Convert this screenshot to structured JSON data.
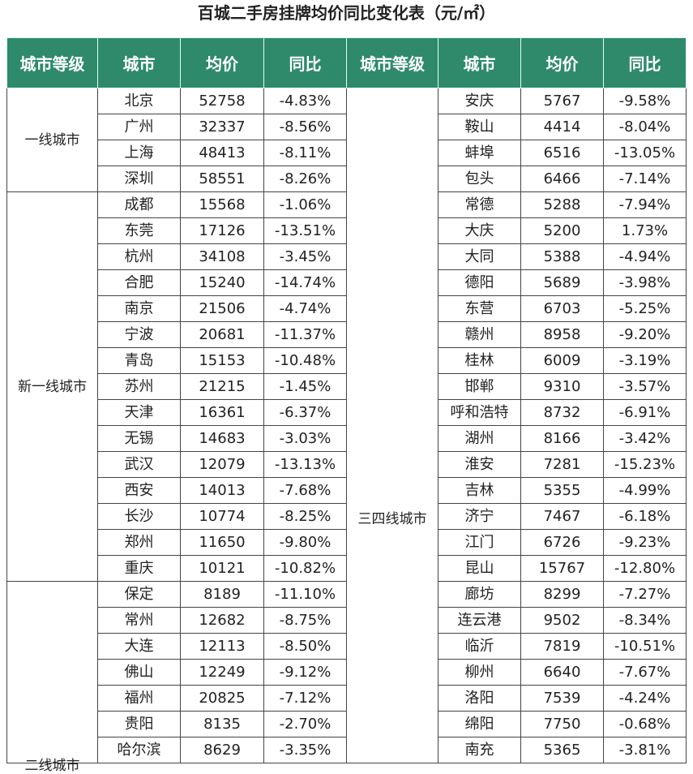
{
  "title": "百城二手房挂牌均价同比变化表（元/㎡）",
  "table": {
    "headers": [
      "城市等级",
      "城市",
      "均价",
      "同比",
      "城市等级",
      "城市",
      "均价",
      "同比"
    ],
    "left_groups": [
      {
        "tier": "一线城市",
        "rows": [
          [
            "北京",
            52758,
            "-4.83%"
          ],
          [
            "广州",
            32337,
            "-8.56%"
          ],
          [
            "上海",
            48413,
            "-8.11%"
          ],
          [
            "深圳",
            58551,
            "-8.26%"
          ]
        ]
      },
      {
        "tier": "新一线城市",
        "rows": [
          [
            "成都",
            15568,
            "-1.06%"
          ],
          [
            "东莞",
            17126,
            "-13.51%"
          ],
          [
            "杭州",
            34108,
            "-3.45%"
          ],
          [
            "合肥",
            15240,
            "-14.74%"
          ],
          [
            "南京",
            21506,
            "-4.74%"
          ],
          [
            "宁波",
            20681,
            "-11.37%"
          ],
          [
            "青岛",
            15153,
            "-10.48%"
          ],
          [
            "苏州",
            21215,
            "-1.45%"
          ],
          [
            "天津",
            16361,
            "-6.37%"
          ],
          [
            "无锡",
            14683,
            "-3.03%"
          ],
          [
            "武汉",
            12079,
            "-13.13%"
          ],
          [
            "西安",
            14013,
            "-7.68%"
          ],
          [
            "长沙",
            10774,
            "-8.25%"
          ],
          [
            "郑州",
            11650,
            "-9.80%"
          ],
          [
            "重庆",
            10121,
            "-10.82%"
          ]
        ]
      },
      {
        "tier": "二线城市",
        "rows": [
          [
            "保定",
            8189,
            "-11.10%"
          ],
          [
            "常州",
            12682,
            "-8.75%"
          ],
          [
            "大连",
            12113,
            "-8.50%"
          ],
          [
            "佛山",
            12249,
            "-9.12%"
          ],
          [
            "福州",
            20825,
            "-7.12%"
          ],
          [
            "贵阳",
            8135,
            "-2.70%"
          ],
          [
            "哈尔滨",
            8629,
            "-3.35%"
          ]
        ]
      }
    ],
    "right_groups": [
      {
        "tier": "三四线城市",
        "rows": [
          [
            "安庆",
            5767,
            "-9.58%"
          ],
          [
            "鞍山",
            4414,
            "-8.04%"
          ],
          [
            "蚌埠",
            6516,
            "-13.05%"
          ],
          [
            "包头",
            6466,
            "-7.14%"
          ],
          [
            "常德",
            5288,
            "-7.94%"
          ],
          [
            "大庆",
            5200,
            "1.73%"
          ],
          [
            "大同",
            5388,
            "-4.94%"
          ],
          [
            "德阳",
            5689,
            "-3.98%"
          ],
          [
            "东营",
            6703,
            "-5.25%"
          ],
          [
            "赣州",
            8958,
            "-9.20%"
          ],
          [
            "桂林",
            6009,
            "-3.19%"
          ],
          [
            "邯郸",
            9310,
            "-3.57%"
          ],
          [
            "呼和浩特",
            8732,
            "-6.91%"
          ],
          [
            "湖州",
            8166,
            "-3.42%"
          ],
          [
            "淮安",
            7281,
            "-15.23%"
          ],
          [
            "吉林",
            5355,
            "-4.99%"
          ],
          [
            "济宁",
            7467,
            "-6.18%"
          ],
          [
            "江门",
            6726,
            "-9.23%"
          ],
          [
            "昆山",
            15767,
            "-12.80%"
          ],
          [
            "廊坊",
            8299,
            "-7.27%"
          ],
          [
            "连云港",
            9502,
            "-8.34%"
          ],
          [
            "临沂",
            7819,
            "-10.51%"
          ],
          [
            "柳州",
            6640,
            "-7.67%"
          ],
          [
            "洛阳",
            7539,
            "-4.24%"
          ],
          [
            "绵阳",
            7750,
            "-0.68%"
          ],
          [
            "南充",
            5365,
            "-3.81%"
          ]
        ]
      }
    ]
  }
}
